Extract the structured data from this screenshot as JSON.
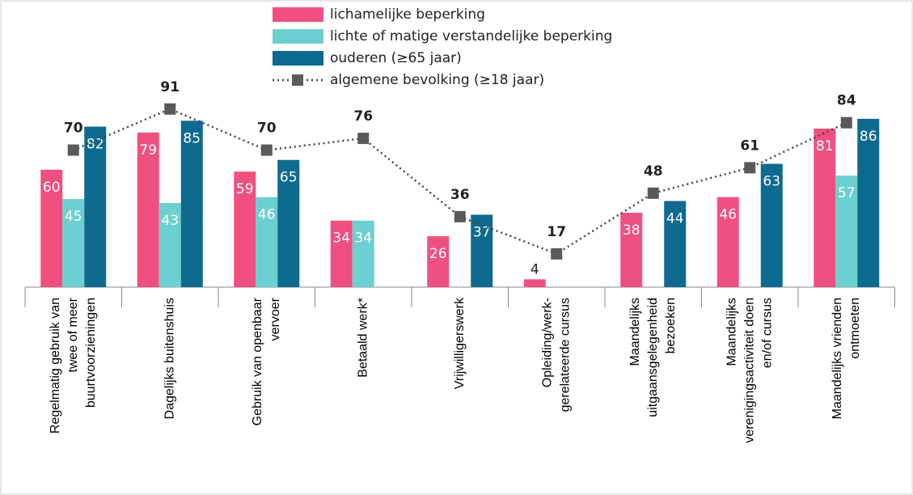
{
  "chart_data": {
    "type": "bar",
    "categories": [
      [
        "Regelmatig gebruik van",
        "twee of meer",
        "buurtvoorzieningen"
      ],
      [
        "Dagelijks buitenshuis"
      ],
      [
        "Gebruik van openbaar",
        "vervoer"
      ],
      [
        "Betaald werk*"
      ],
      [
        "Vrijwilligerswerk"
      ],
      [
        "Opleiding/werk-",
        "gerelateerde cursus"
      ],
      [
        "Maandelijks",
        "uitgaansgelegenheid",
        "bezoeken"
      ],
      [
        "Maandelijks",
        "verenigingsactiviteit doen",
        "en/of cursus"
      ],
      [
        "Maandelijks vrienden",
        "ontmoeten"
      ]
    ],
    "series": [
      {
        "name": "lichamelijke beperking",
        "color": "#f0507f",
        "values": [
          60,
          79,
          59,
          34,
          26,
          4,
          38,
          46,
          81
        ]
      },
      {
        "name": "lichte of matige verstandelijke beperking",
        "color": "#6dd0d0",
        "values": [
          45,
          43,
          46,
          34,
          null,
          null,
          null,
          null,
          57
        ]
      },
      {
        "name": "ouderen    (≥65 jaar)",
        "color": "#0e6a8f",
        "values": [
          82,
          85,
          65,
          null,
          37,
          null,
          44,
          63,
          86
        ]
      },
      {
        "name": "algemene bevolking (≥18 jaar)",
        "type": "line",
        "color": "#5a5a5a",
        "values": [
          70,
          91,
          70,
          76,
          36,
          17,
          48,
          61,
          84
        ]
      }
    ]
  }
}
